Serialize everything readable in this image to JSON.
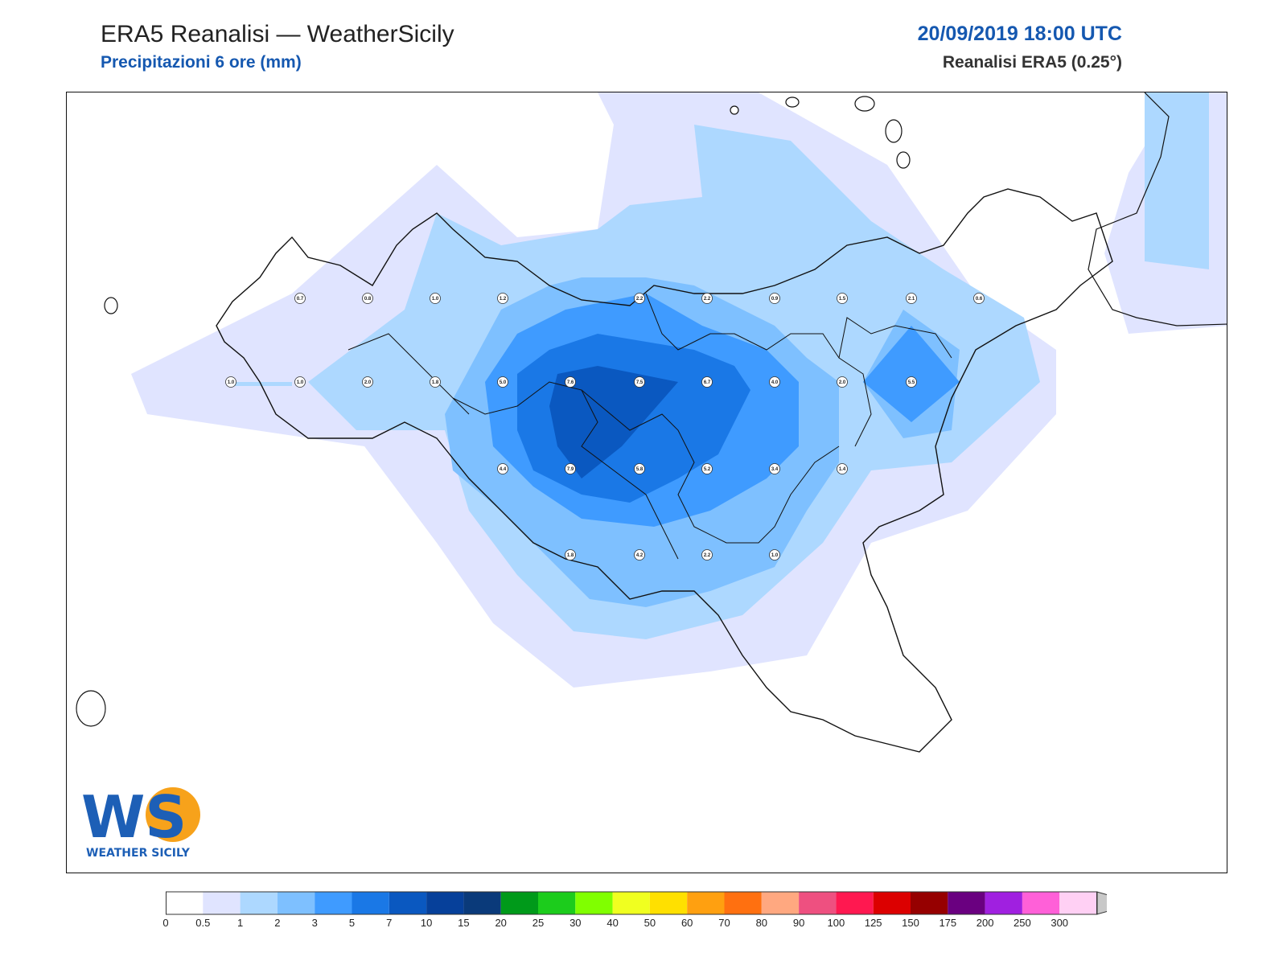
{
  "header": {
    "title": "ERA5 Reanalisi — WeatherSicily",
    "subtitle": "Precipitazioni 6 ore (mm)",
    "date": "20/09/2019 18:00 UTC",
    "source": "Reanalisi ERA5 (0.25°)"
  },
  "logo": {
    "text_ws": "WS",
    "text_brand": "WEATHER SICILY"
  },
  "legend": {
    "levels": [
      "0",
      "0.5",
      "1",
      "2",
      "3",
      "5",
      "7",
      "10",
      "15",
      "20",
      "25",
      "30",
      "40",
      "50",
      "60",
      "70",
      "80",
      "90",
      "100",
      "125",
      "150",
      "175",
      "200",
      "250",
      "300"
    ],
    "colors": [
      "#ffffff",
      "#e0e4ff",
      "#add8ff",
      "#7ec0ff",
      "#3f9bff",
      "#1a78e6",
      "#0a58c0",
      "#06409a",
      "#0a3a7a",
      "#009a1a",
      "#1ccc1c",
      "#80ff00",
      "#f0ff20",
      "#ffe000",
      "#ffa010",
      "#ff7010",
      "#ffa880",
      "#ee5080",
      "#ff1850",
      "#dc0000",
      "#960000",
      "#6a0080",
      "#a020e0",
      "#ff60d8",
      "#ffd0f4"
    ],
    "extend_color": "#c8c8c8"
  },
  "stations": [
    {
      "id": "p01",
      "value": "0.7"
    },
    {
      "id": "p02",
      "value": "0.8"
    },
    {
      "id": "p03",
      "value": "1.0"
    },
    {
      "id": "p04",
      "value": "1.2"
    },
    {
      "id": "p05",
      "value": "2.2"
    },
    {
      "id": "p06",
      "value": "2.2"
    },
    {
      "id": "p07",
      "value": "0.9"
    },
    {
      "id": "p08",
      "value": "1.5"
    },
    {
      "id": "p09",
      "value": "2.1"
    },
    {
      "id": "p10",
      "value": "0.6"
    },
    {
      "id": "p11",
      "value": "1.0"
    },
    {
      "id": "p12",
      "value": "1.0"
    },
    {
      "id": "p13",
      "value": "2.0"
    },
    {
      "id": "p14",
      "value": "1.8"
    },
    {
      "id": "p15",
      "value": "5.0"
    },
    {
      "id": "p16",
      "value": "7.6"
    },
    {
      "id": "p17",
      "value": "7.5"
    },
    {
      "id": "p18",
      "value": "6.7"
    },
    {
      "id": "p19",
      "value": "4.0"
    },
    {
      "id": "p20",
      "value": "2.0"
    },
    {
      "id": "p21",
      "value": "5.5"
    },
    {
      "id": "p22",
      "value": "4.4"
    },
    {
      "id": "p23",
      "value": "7.9"
    },
    {
      "id": "p24",
      "value": "5.8"
    },
    {
      "id": "p25",
      "value": "5.2"
    },
    {
      "id": "p26",
      "value": "3.4"
    },
    {
      "id": "p27",
      "value": "1.4"
    },
    {
      "id": "p28",
      "value": "1.8"
    },
    {
      "id": "p29",
      "value": "4.2"
    },
    {
      "id": "p30",
      "value": "2.2"
    },
    {
      "id": "p31",
      "value": "1.0"
    }
  ]
}
